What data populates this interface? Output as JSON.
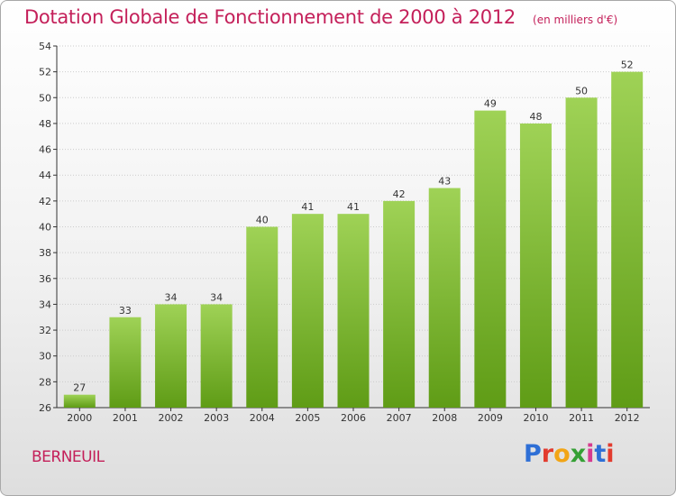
{
  "header": {
    "title": "Dotation Globale de Fonctionnement de 2000 à 2012",
    "unit": "(en milliers d'€)"
  },
  "footer": {
    "commune": "BERNEUIL",
    "brand": "Proxiti",
    "brand_colors": [
      "#2e6fd6",
      "#e23b2e",
      "#f2a516",
      "#35a035",
      "#d63a8f",
      "#2e6fd6",
      "#e23b2e"
    ]
  },
  "colors": {
    "title": "#c4205a",
    "bar_top": "#9fd256",
    "bar_bottom": "#5f9c16",
    "grid": "#cccccc"
  },
  "chart_data": {
    "type": "bar",
    "title": "Dotation Globale de Fonctionnement de 2000 à 2012",
    "subtitle": "(en milliers d'€)",
    "xlabel": "",
    "ylabel": "",
    "categories": [
      "2000",
      "2001",
      "2002",
      "2003",
      "2004",
      "2005",
      "2006",
      "2007",
      "2008",
      "2009",
      "2010",
      "2011",
      "2012"
    ],
    "values": [
      27,
      33,
      34,
      34,
      40,
      41,
      41,
      42,
      43,
      49,
      48,
      50,
      52
    ],
    "ylim": [
      26,
      54
    ],
    "ytick_step": 2,
    "grid": true,
    "legend": "none"
  }
}
